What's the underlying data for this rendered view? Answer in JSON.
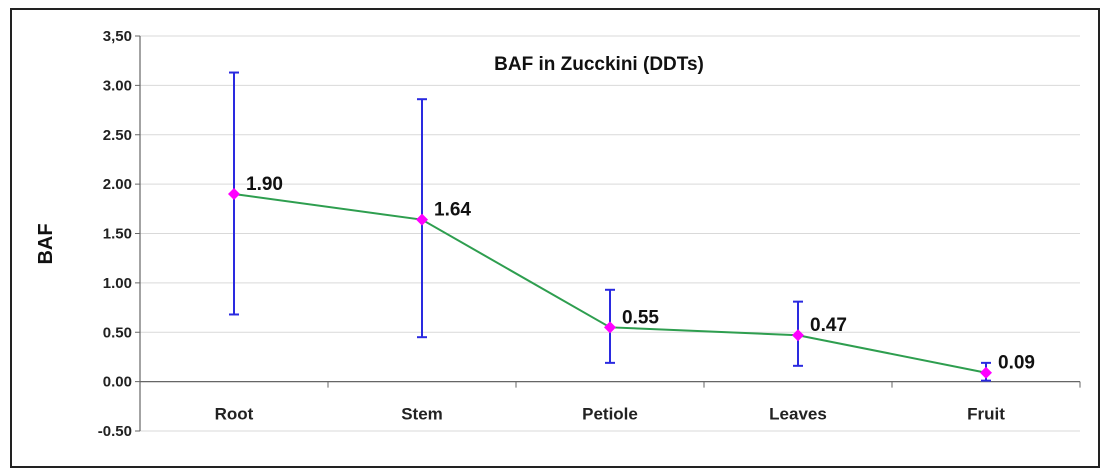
{
  "chart_data": {
    "type": "line",
    "title": "BAF in Zucckini (DDTs)",
    "xlabel": "",
    "ylabel": "BAF",
    "ylim": [
      -0.5,
      3.5
    ],
    "yticks": [
      "3,50",
      "3.00",
      "2.50",
      "2.00",
      "1.50",
      "1.00",
      "0.50",
      "0.00",
      "-0.50"
    ],
    "grid": true,
    "categories": [
      "Root",
      "Stem",
      "Petiole",
      "Leaves",
      "Fruit"
    ],
    "series": [
      {
        "values": [
          1.9,
          1.64,
          0.55,
          0.47,
          0.09
        ],
        "error_low": [
          0.68,
          0.45,
          0.19,
          0.16,
          0.01
        ],
        "error_high": [
          3.13,
          2.86,
          0.93,
          0.81,
          0.19
        ],
        "data_labels": [
          "1.90",
          "1.64",
          "0.55",
          "0.47",
          "0.09"
        ]
      }
    ],
    "colors": {
      "line": "#2e9e4f",
      "marker": "#ff00ff",
      "error_bar": "#2a2ae0",
      "grid": "#d9d9d9",
      "axis": "#666666"
    }
  }
}
